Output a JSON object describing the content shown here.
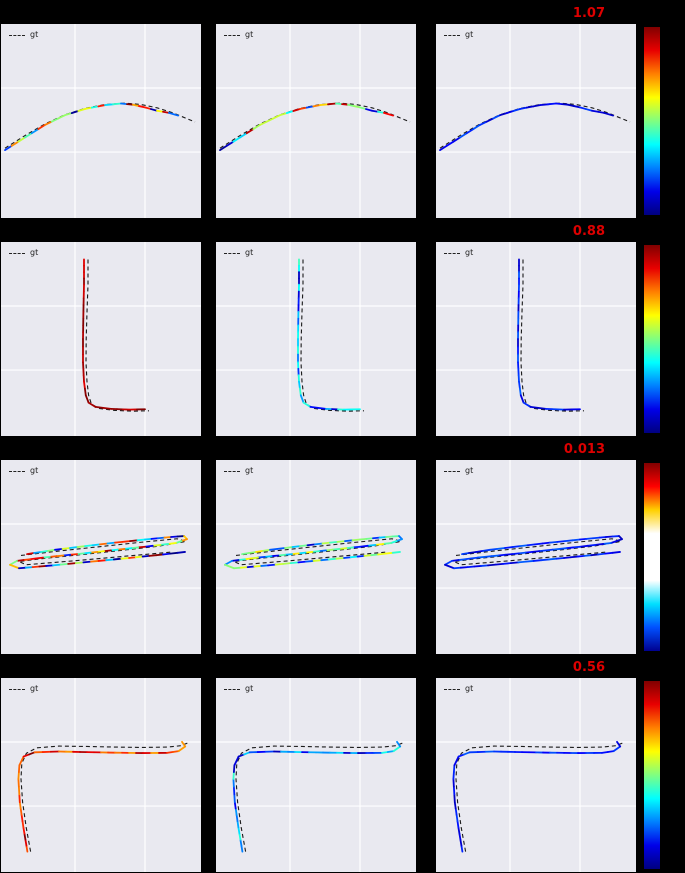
{
  "page": {
    "background": "#000000"
  },
  "chart_data": {
    "type": "line",
    "title": "",
    "description": "4x3 grid of trajectory plots; dashed black = ground truth (gt), colored line = predicted trajectory colored by error; third column shows low-error (blue) trajectory with jet colorbar; red number above third column is the per-row error metric",
    "legend_label": "gt",
    "metric_color": "#dd0000",
    "plot_bg": "#e9e9f0",
    "grid": {
      "x": [
        0.37,
        0.72
      ],
      "y": [
        0.33,
        0.66
      ]
    },
    "rows": [
      {
        "metric": "1.07",
        "color_modes": [
          "multi",
          "multi",
          "blue"
        ],
        "colorbar": [
          "#800000",
          "#e80000",
          "#ff8000",
          "#ffff00",
          "#80ff80",
          "#00ffff",
          "#0080ff",
          "#0000e8",
          "#000080"
        ],
        "gt": [
          [
            0.02,
            0.64
          ],
          [
            0.12,
            0.575
          ],
          [
            0.22,
            0.515
          ],
          [
            0.32,
            0.468
          ],
          [
            0.42,
            0.435
          ],
          [
            0.52,
            0.415
          ],
          [
            0.62,
            0.408
          ],
          [
            0.7,
            0.415
          ],
          [
            0.78,
            0.432
          ],
          [
            0.86,
            0.458
          ],
          [
            0.93,
            0.488
          ],
          [
            0.97,
            0.505
          ]
        ],
        "pred": [
          [
            0.02,
            0.65
          ],
          [
            0.12,
            0.585
          ],
          [
            0.22,
            0.52
          ],
          [
            0.32,
            0.47
          ],
          [
            0.42,
            0.438
          ],
          [
            0.52,
            0.418
          ],
          [
            0.6,
            0.41
          ],
          [
            0.66,
            0.416
          ],
          [
            0.72,
            0.43
          ],
          [
            0.78,
            0.447
          ],
          [
            0.84,
            0.458
          ],
          [
            0.885,
            0.472
          ]
        ]
      },
      {
        "metric": "0.88",
        "color_modes": [
          "red",
          "cool",
          "blue"
        ],
        "colorbar": [
          "#800000",
          "#e80000",
          "#ff8000",
          "#ffff00",
          "#80ff80",
          "#00ffff",
          "#0080ff",
          "#0000e8",
          "#000080"
        ],
        "gt": [
          [
            0.435,
            0.09
          ],
          [
            0.435,
            0.22
          ],
          [
            0.43,
            0.36
          ],
          [
            0.426,
            0.5
          ],
          [
            0.425,
            0.62
          ],
          [
            0.43,
            0.72
          ],
          [
            0.438,
            0.79
          ],
          [
            0.452,
            0.835
          ],
          [
            0.49,
            0.858
          ],
          [
            0.57,
            0.868
          ],
          [
            0.66,
            0.872
          ],
          [
            0.74,
            0.87
          ]
        ],
        "pred": [
          [
            0.415,
            0.09
          ],
          [
            0.415,
            0.22
          ],
          [
            0.412,
            0.36
          ],
          [
            0.41,
            0.5
          ],
          [
            0.41,
            0.62
          ],
          [
            0.415,
            0.72
          ],
          [
            0.424,
            0.79
          ],
          [
            0.438,
            0.828
          ],
          [
            0.472,
            0.85
          ],
          [
            0.55,
            0.86
          ],
          [
            0.64,
            0.864
          ],
          [
            0.72,
            0.862
          ]
        ]
      },
      {
        "metric": "0.013",
        "color_modes": [
          "multi",
          "coolwide",
          "blue"
        ],
        "colorbar": [
          "#800000",
          "#ff0000",
          "#ffd000",
          "#ffffff",
          "#ffffff",
          "#ffffff",
          "#00e0ff",
          "#0050ff",
          "#000090"
        ],
        "gt": [
          [
            0.1,
            0.492
          ],
          [
            0.3,
            0.468
          ],
          [
            0.5,
            0.446
          ],
          [
            0.7,
            0.424
          ],
          [
            0.88,
            0.406
          ],
          [
            0.925,
            0.42
          ],
          [
            0.79,
            0.444
          ],
          [
            0.6,
            0.466
          ],
          [
            0.4,
            0.488
          ],
          [
            0.21,
            0.508
          ],
          [
            0.09,
            0.523
          ],
          [
            0.125,
            0.54
          ],
          [
            0.36,
            0.52
          ],
          [
            0.62,
            0.496
          ],
          [
            0.86,
            0.474
          ]
        ],
        "pred": [
          [
            0.13,
            0.485
          ],
          [
            0.27,
            0.463
          ],
          [
            0.42,
            0.444
          ],
          [
            0.57,
            0.426
          ],
          [
            0.72,
            0.41
          ],
          [
            0.85,
            0.397
          ],
          [
            0.915,
            0.392
          ],
          [
            0.93,
            0.408
          ],
          [
            0.875,
            0.428
          ],
          [
            0.72,
            0.447
          ],
          [
            0.55,
            0.466
          ],
          [
            0.38,
            0.485
          ],
          [
            0.21,
            0.503
          ],
          [
            0.08,
            0.52
          ],
          [
            0.045,
            0.54
          ],
          [
            0.09,
            0.558
          ],
          [
            0.26,
            0.543
          ],
          [
            0.45,
            0.524
          ],
          [
            0.64,
            0.505
          ],
          [
            0.81,
            0.487
          ],
          [
            0.92,
            0.474
          ]
        ]
      },
      {
        "metric": "0.56",
        "color_modes": [
          "warm",
          "cool",
          "blue"
        ],
        "colorbar": [
          "#800000",
          "#e80000",
          "#ff8000",
          "#ffff00",
          "#80ff80",
          "#00ffff",
          "#0080ff",
          "#0000e8",
          "#000080"
        ],
        "gt": [
          [
            0.148,
            0.895
          ],
          [
            0.126,
            0.77
          ],
          [
            0.108,
            0.64
          ],
          [
            0.1,
            0.52
          ],
          [
            0.104,
            0.44
          ],
          [
            0.127,
            0.388
          ],
          [
            0.178,
            0.36
          ],
          [
            0.29,
            0.351
          ],
          [
            0.43,
            0.353
          ],
          [
            0.57,
            0.356
          ],
          [
            0.71,
            0.358
          ],
          [
            0.83,
            0.356
          ],
          [
            0.9,
            0.349
          ],
          [
            0.938,
            0.333
          ]
        ],
        "pred": [
          [
            0.132,
            0.895
          ],
          [
            0.112,
            0.77
          ],
          [
            0.094,
            0.64
          ],
          [
            0.087,
            0.52
          ],
          [
            0.092,
            0.45
          ],
          [
            0.113,
            0.405
          ],
          [
            0.168,
            0.383
          ],
          [
            0.29,
            0.379
          ],
          [
            0.43,
            0.382
          ],
          [
            0.57,
            0.385
          ],
          [
            0.71,
            0.387
          ],
          [
            0.83,
            0.386
          ],
          [
            0.888,
            0.377
          ],
          [
            0.921,
            0.353
          ],
          [
            0.905,
            0.329
          ]
        ]
      }
    ]
  }
}
